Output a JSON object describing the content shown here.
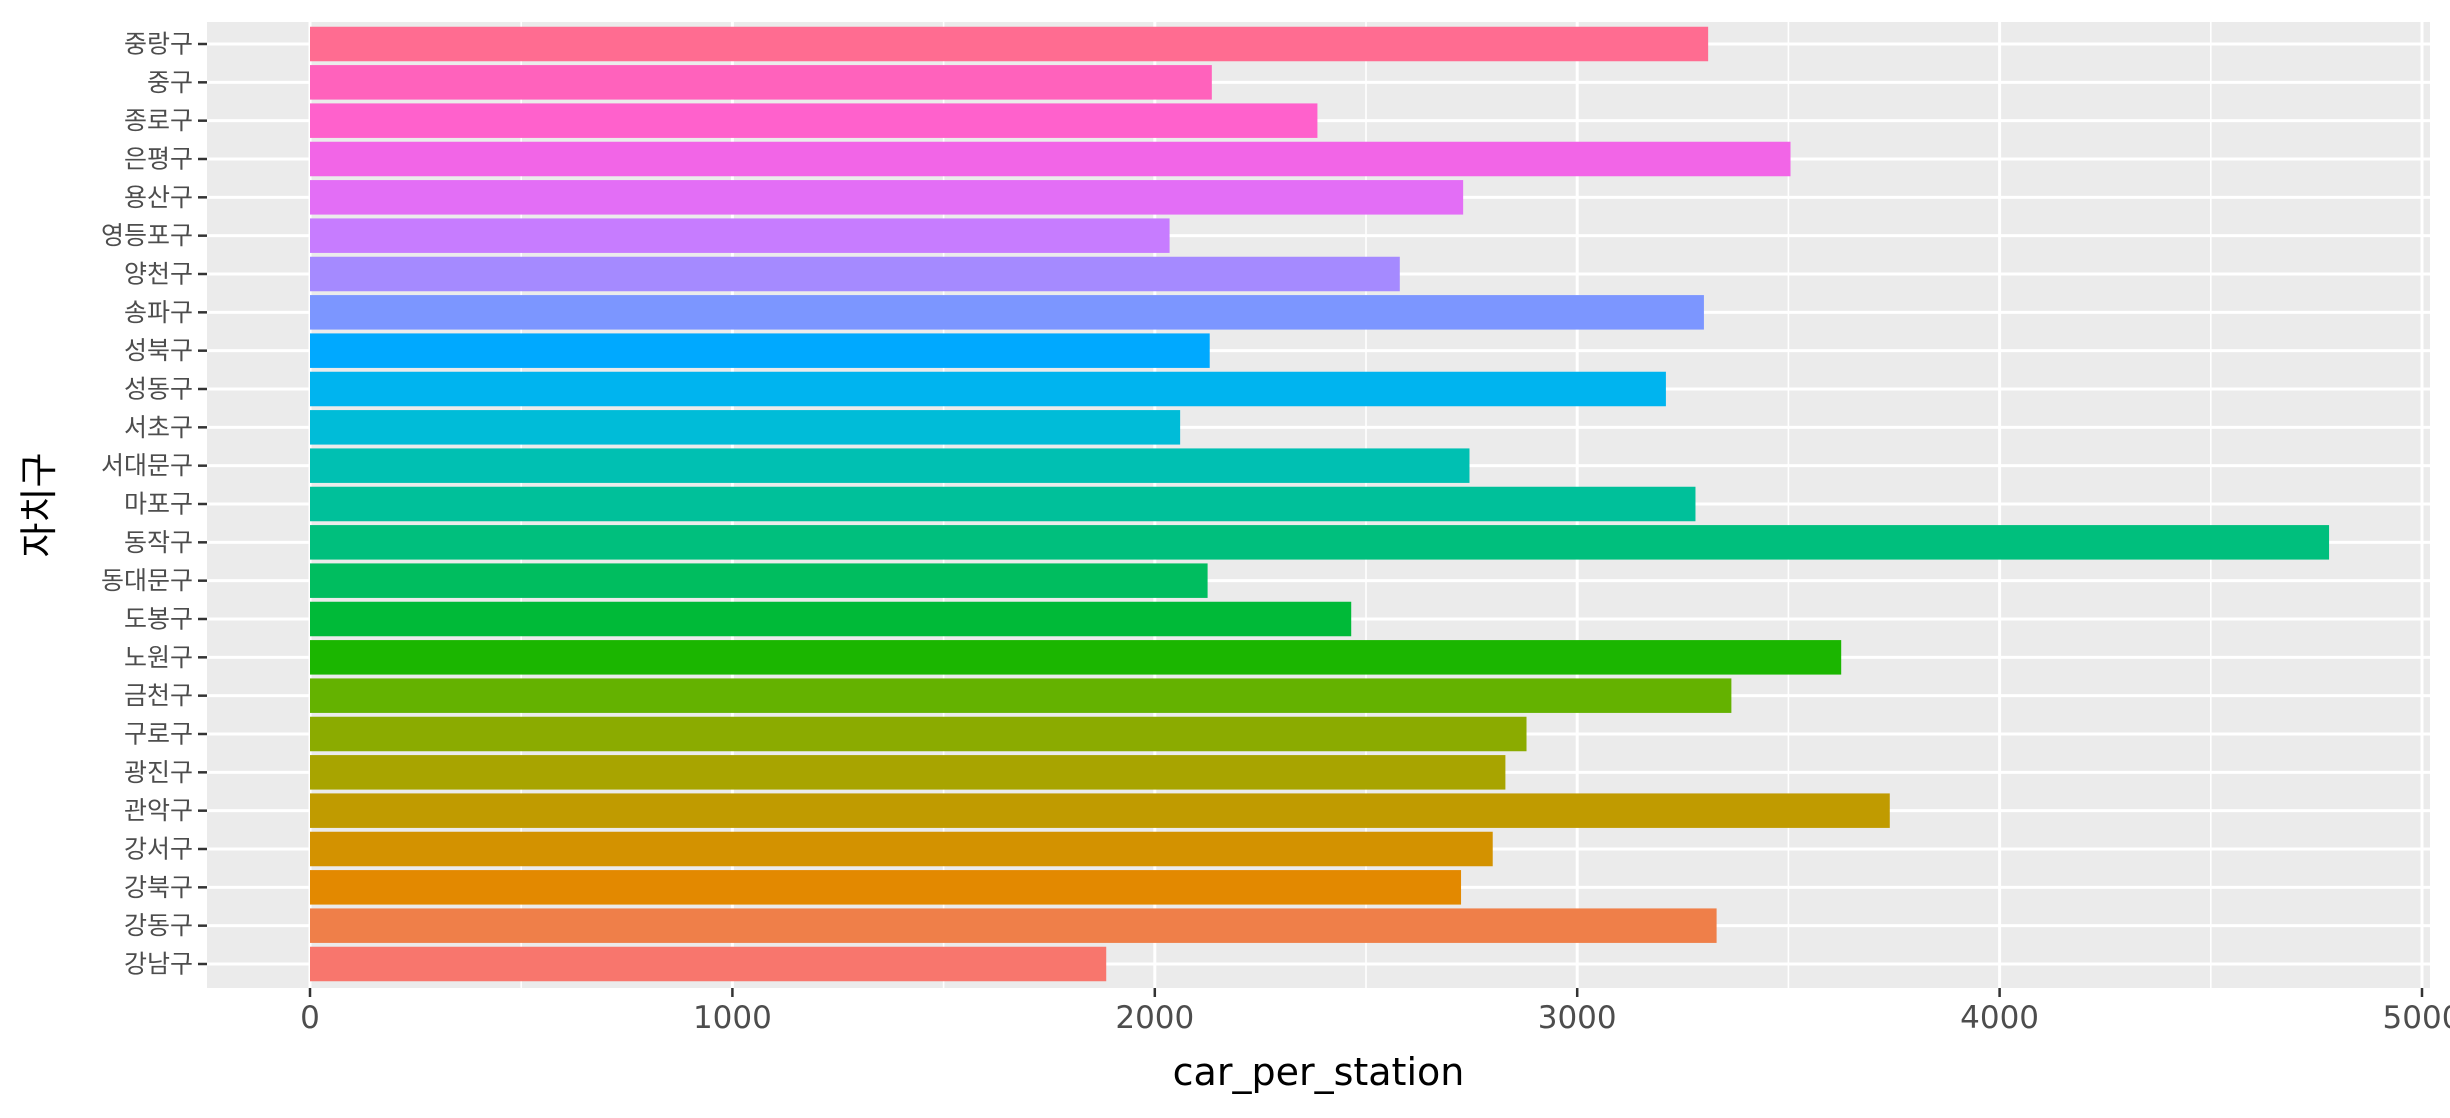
{
  "chart_data": {
    "type": "bar",
    "orientation": "horizontal",
    "xlabel": "car_per_station",
    "ylabel": "자치구",
    "xlim": [
      -240,
      5000
    ],
    "x_ticks": [
      0,
      1000,
      2000,
      3000,
      4000,
      5000
    ],
    "x_tick_labels": [
      "0",
      "1000",
      "2000",
      "3000",
      "4000",
      "5000"
    ],
    "grid": true,
    "legend": "none",
    "categories": [
      "강남구",
      "강동구",
      "강북구",
      "강서구",
      "관악구",
      "광진구",
      "구로구",
      "금천구",
      "노원구",
      "도봉구",
      "동대문구",
      "동작구",
      "마포구",
      "서대문구",
      "서초구",
      "성동구",
      "성북구",
      "송파구",
      "양천구",
      "영등포구",
      "용산구",
      "은평구",
      "종로구",
      "중구",
      "중랑구"
    ],
    "values": [
      1885,
      3330,
      2725,
      2800,
      3740,
      2830,
      2880,
      3365,
      3625,
      2465,
      2125,
      4780,
      3280,
      2745,
      2060,
      3210,
      2130,
      3300,
      2580,
      2035,
      2730,
      3505,
      2385,
      2135,
      3310
    ],
    "colors": [
      "#F8766D",
      "#EF7F49",
      "#E38900",
      "#D39200",
      "#C09B00",
      "#A8A400",
      "#8BAB00",
      "#64B200",
      "#1BB600",
      "#00BA38",
      "#00BD5F",
      "#00BF7D",
      "#00C09A",
      "#00C0B2",
      "#00BCD8",
      "#00B4EF",
      "#00A9FF",
      "#7C96FF",
      "#A58AFF",
      "#C77CFF",
      "#E36EF6",
      "#F265E7",
      "#FF61CC",
      "#FF62BC",
      "#FF6C91"
    ],
    "panel_background": "#EBEBEB",
    "grid_color": "#FFFFFF"
  }
}
